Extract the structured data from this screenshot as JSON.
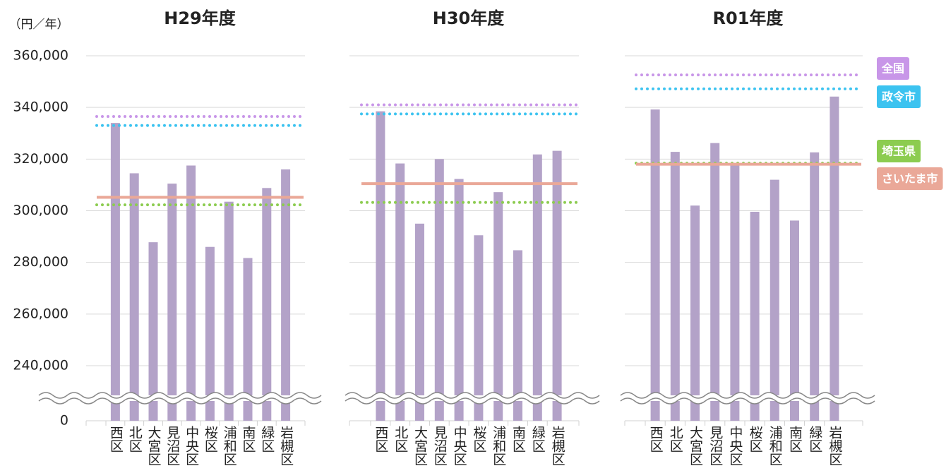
{
  "y_label": "（円／年）",
  "reference_lines": [
    {
      "name": "全国",
      "color": "#c896e8",
      "style": "dotted"
    },
    {
      "name": "政令市",
      "color": "#3cc3f0",
      "style": "dotted"
    },
    {
      "name": "埼玉県",
      "color": "#8ccc50",
      "style": "dotted"
    },
    {
      "name": "さいたま市",
      "color": "#eaa898",
      "style": "solid"
    }
  ],
  "chart_data": [
    {
      "type": "bar",
      "title": "H29年度",
      "categories": [
        "西区",
        "北区",
        "大宮区",
        "見沼区",
        "中央区",
        "桜区",
        "浦和区",
        "南区",
        "緑区",
        "岩槻区"
      ],
      "values": [
        334000,
        314500,
        287800,
        310500,
        317500,
        286000,
        303500,
        281700,
        308800,
        316000
      ],
      "color": "#b3a2c8",
      "reference_values": [
        336500,
        333000,
        302300,
        305200
      ],
      "ylim": [
        0,
        360000
      ],
      "axis_break": [
        0,
        240000
      ],
      "yticks": [
        0,
        {
          "value": 240000,
          "label": "240,000"
        },
        {
          "value": 260000,
          "label": "260,000"
        },
        {
          "value": 280000,
          "label": "280,000"
        },
        {
          "value": 300000,
          "label": "300,000"
        },
        {
          "value": 320000,
          "label": "320,000"
        },
        {
          "value": 340000,
          "label": "340,000"
        },
        {
          "value": 360000,
          "label": "360,000"
        }
      ],
      "grid": true
    },
    {
      "type": "bar",
      "title": "H30年度",
      "categories": [
        "西区",
        "北区",
        "大宮区",
        "見沼区",
        "中央区",
        "桜区",
        "浦和区",
        "南区",
        "緑区",
        "岩槻区"
      ],
      "values": [
        338500,
        318300,
        295000,
        320000,
        312300,
        290500,
        307200,
        284700,
        321800,
        323200
      ],
      "color": "#b3a2c8",
      "reference_values": [
        341000,
        337500,
        303200,
        310500
      ],
      "ylim": [
        0,
        360000
      ],
      "axis_break": [
        0,
        240000
      ],
      "yticks": [
        0,
        240000,
        260000,
        280000,
        300000,
        320000,
        340000,
        360000
      ],
      "grid": true
    },
    {
      "type": "bar",
      "title": "R01年度",
      "categories": [
        "西区",
        "北区",
        "大宮区",
        "見沼区",
        "中央区",
        "桜区",
        "浦和区",
        "南区",
        "緑区",
        "岩槻区"
      ],
      "values": [
        339200,
        322800,
        302000,
        326200,
        317500,
        299600,
        312000,
        296200,
        322600,
        344200
      ],
      "color": "#b3a2c8",
      "reference_values": [
        352600,
        347200,
        318400,
        318000
      ],
      "ylim": [
        0,
        360000
      ],
      "axis_break": [
        0,
        240000
      ],
      "yticks": [
        0,
        240000,
        260000,
        280000,
        300000,
        320000,
        340000,
        360000
      ],
      "grid": true
    }
  ]
}
